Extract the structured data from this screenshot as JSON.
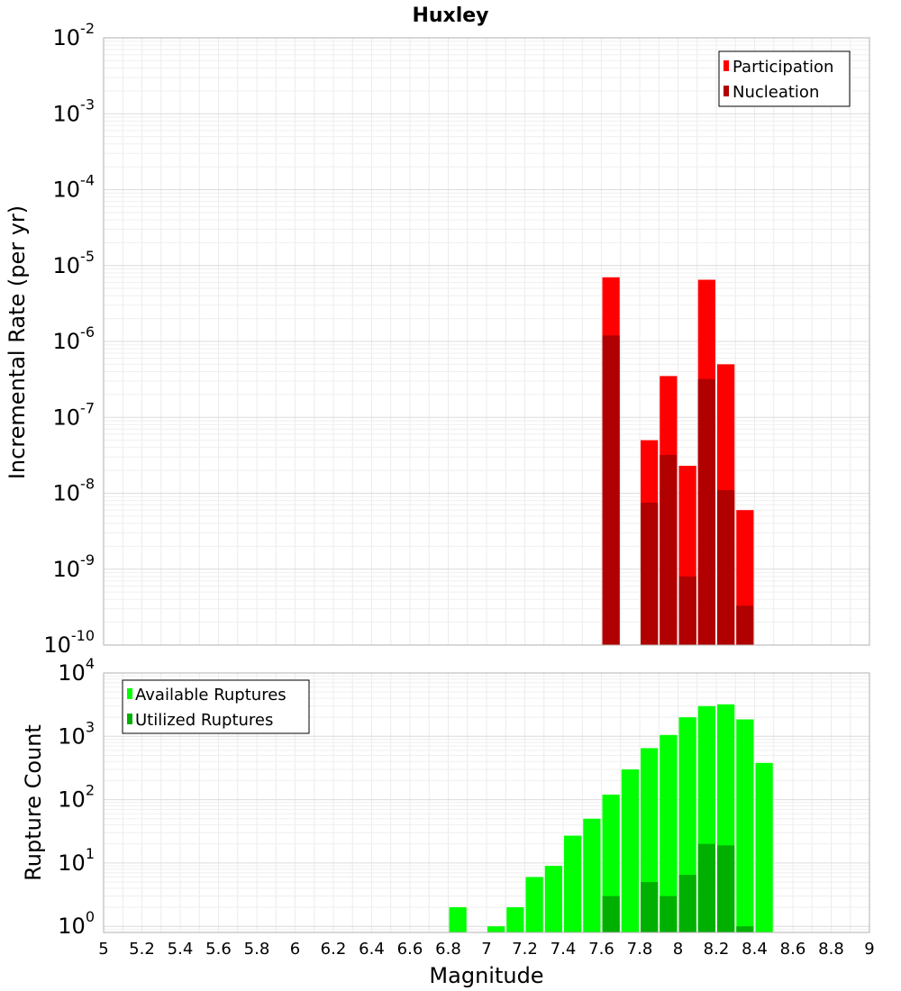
{
  "chart_data": [
    {
      "type": "bar",
      "title": "Huxley",
      "xlabel": "",
      "ylabel": "Incremental Rate (per yr)",
      "yscale": "log",
      "ylim": [
        1e-10,
        0.01
      ],
      "xlim": [
        5,
        9
      ],
      "bin_width": 0.1,
      "yticks": [
        {
          "base": "10",
          "exp": "-10"
        },
        {
          "base": "10",
          "exp": "-9"
        },
        {
          "base": "10",
          "exp": "-8"
        },
        {
          "base": "10",
          "exp": "-7"
        },
        {
          "base": "10",
          "exp": "-6"
        },
        {
          "base": "10",
          "exp": "-5"
        },
        {
          "base": "10",
          "exp": "-4"
        },
        {
          "base": "10",
          "exp": "-3"
        },
        {
          "base": "10",
          "exp": "-2"
        }
      ],
      "legend_position": "top-right",
      "grid": true,
      "series": [
        {
          "name": "Participation",
          "color": "#ff0000",
          "x": [
            7.65,
            7.85,
            7.95,
            8.05,
            8.15,
            8.25,
            8.35
          ],
          "values": [
            7e-06,
            5e-08,
            3.5e-07,
            2.3e-08,
            6.5e-06,
            5e-07,
            6e-09
          ]
        },
        {
          "name": "Nucleation",
          "color": "#b00000",
          "x": [
            7.65,
            7.85,
            7.95,
            8.05,
            8.15,
            8.25,
            8.35
          ],
          "values": [
            1.2e-06,
            7.5e-09,
            3.2e-08,
            8e-10,
            3.2e-07,
            1.1e-08,
            3.3e-10
          ]
        }
      ]
    },
    {
      "type": "bar",
      "title": "",
      "xlabel": "Magnitude",
      "ylabel": "Rupture Count",
      "yscale": "log",
      "ylim": [
        0.8,
        10000
      ],
      "xlim": [
        5,
        9
      ],
      "bin_width": 0.1,
      "xticks": [
        "5",
        "5.2",
        "5.4",
        "5.6",
        "5.8",
        "6",
        "6.2",
        "6.4",
        "6.6",
        "6.8",
        "7",
        "7.2",
        "7.4",
        "7.6",
        "7.8",
        "8",
        "8.2",
        "8.4",
        "8.6",
        "8.8",
        "9"
      ],
      "yticks": [
        {
          "base": "10",
          "exp": "0"
        },
        {
          "base": "10",
          "exp": "1"
        },
        {
          "base": "10",
          "exp": "2"
        },
        {
          "base": "10",
          "exp": "3"
        },
        {
          "base": "10",
          "exp": "4"
        }
      ],
      "legend_position": "top-left",
      "grid": true,
      "series": [
        {
          "name": "Available Ruptures",
          "color": "#00ff00",
          "x": [
            6.85,
            7.05,
            7.15,
            7.25,
            7.35,
            7.45,
            7.55,
            7.65,
            7.75,
            7.85,
            7.95,
            8.05,
            8.15,
            8.25,
            8.35,
            8.45
          ],
          "values": [
            2,
            1,
            2,
            6,
            9,
            27,
            50,
            120,
            300,
            650,
            1050,
            2000,
            3000,
            3200,
            1850,
            380
          ]
        },
        {
          "name": "Utilized Ruptures",
          "color": "#00b000",
          "x": [
            7.65,
            7.85,
            7.95,
            8.05,
            8.15,
            8.25,
            8.35
          ],
          "values": [
            3,
            5,
            3,
            6.5,
            20,
            19,
            1
          ]
        }
      ]
    }
  ]
}
